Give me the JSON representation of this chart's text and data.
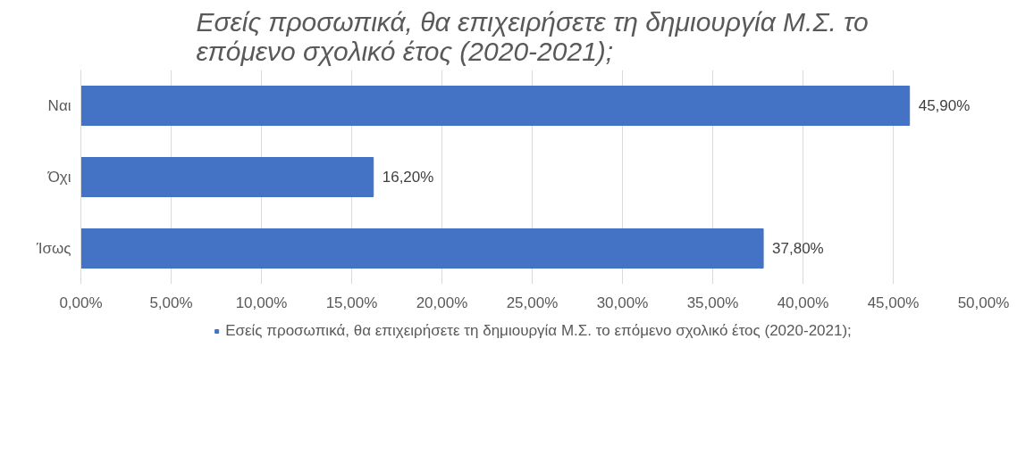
{
  "chart_data": {
    "type": "bar",
    "orientation": "horizontal",
    "title": "Εσείς προσωπικά, θα επιχειρήσετε τη δημιουργία Μ.Σ. το\nεπόμενο σχολικό έτος (2020-2021);",
    "categories": [
      "Ναι",
      "Όχι",
      "Ίσως"
    ],
    "series": [
      {
        "name": "Εσείς προσωπικά, θα επιχειρήσετε τη δημιουργία Μ.Σ. το επόμενο σχολικό έτος (2020-2021);",
        "color": "#4472c4",
        "values": [
          45.9,
          16.2,
          37.8
        ],
        "value_labels": [
          "45,90%",
          "16,20%",
          "37,80%"
        ]
      }
    ],
    "xlim": [
      0,
      50
    ],
    "xticks": [
      {
        "value": 0,
        "label": "0,00%"
      },
      {
        "value": 5,
        "label": "5,00%"
      },
      {
        "value": 10,
        "label": "10,00%"
      },
      {
        "value": 15,
        "label": "15,00%"
      },
      {
        "value": 20,
        "label": "20,00%"
      },
      {
        "value": 25,
        "label": "25,00%"
      },
      {
        "value": 30,
        "label": "30,00%"
      },
      {
        "value": 35,
        "label": "35,00%"
      },
      {
        "value": 40,
        "label": "40,00%"
      },
      {
        "value": 45,
        "label": "45,00%"
      },
      {
        "value": 50,
        "label": "50,00%"
      }
    ],
    "grid": "x",
    "legend": "bottom"
  }
}
